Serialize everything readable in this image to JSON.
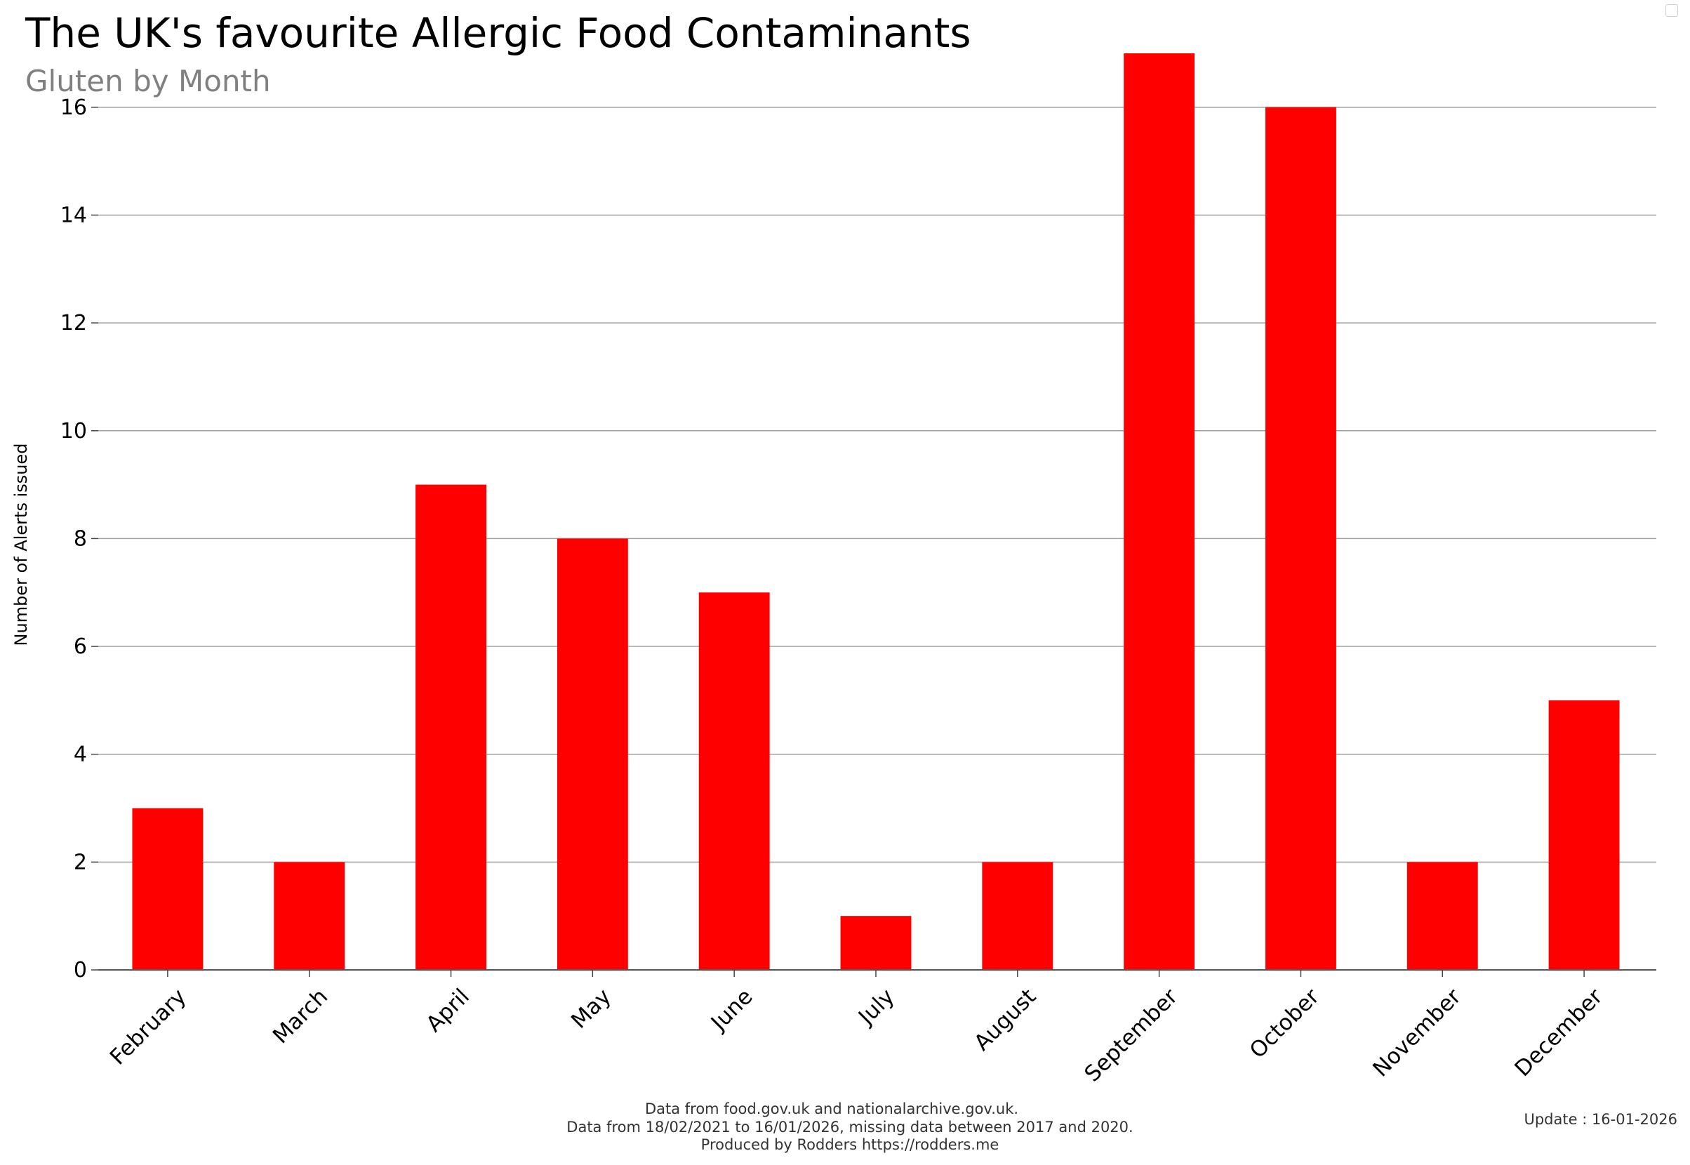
{
  "chart_data": {
    "type": "bar",
    "title": "The UK's favourite Allergic Food Contaminants",
    "subtitle": "Gluten by Month",
    "xlabel": "",
    "ylabel": "Number of Alerts issued",
    "categories": [
      "February",
      "March",
      "April",
      "May",
      "June",
      "July",
      "August",
      "September",
      "October",
      "November",
      "December"
    ],
    "values": [
      3,
      2,
      9,
      8,
      7,
      1,
      2,
      17,
      16,
      2,
      5
    ],
    "ylim": [
      0,
      17
    ],
    "yticks": [
      0,
      2,
      4,
      6,
      8,
      10,
      12,
      14,
      16
    ],
    "grid": true,
    "bar_color": "#ff0000",
    "grid_color": "#a0a0a0"
  },
  "footer": {
    "source_line1": "Data from food.gov.uk and nationalarchive.gov.uk.",
    "source_line2": "Data from 18/02/2021 to 16/01/2026, missing data between 2017 and 2020.",
    "source_line3": "Produced by Rodders https://rodders.me",
    "update": "Update : 16-01-2026"
  }
}
